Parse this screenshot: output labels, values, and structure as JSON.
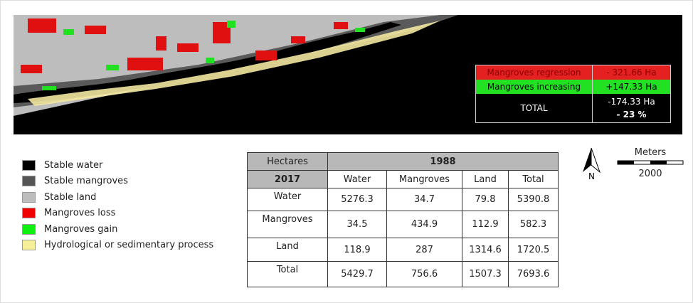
{
  "map": {
    "inset": {
      "rows": [
        {
          "label": "Mangroves regression",
          "value": "- 321.66 Ha"
        },
        {
          "label": "Mangroves increasing",
          "value": "+147.33 Ha"
        },
        {
          "label": "TOTAL",
          "value": "-174.33 Ha",
          "percent": "- 23 %"
        }
      ]
    }
  },
  "legend": [
    "Stable water",
    "Stable mangroves",
    "Stable land",
    "Mangroves loss",
    "Mangroves gain",
    "Hydrological or sedimentary process"
  ],
  "table": {
    "corner": "Hectares",
    "year_top": "1988",
    "year_left": "2017",
    "columns": [
      "Water",
      "Mangroves",
      "Land",
      "Total"
    ],
    "rows": [
      [
        "Water",
        "5276.3",
        "34.7",
        "79.8",
        "5390.8"
      ],
      [
        "Mangroves",
        "34.5",
        "434.9",
        "112.9",
        "582.3"
      ],
      [
        "Land",
        "118.9",
        "287",
        "1314.6",
        "1720.5"
      ],
      [
        "Total",
        "5429.7",
        "756.6",
        "1507.3",
        "7693.6"
      ]
    ]
  },
  "scale": {
    "unit": "Meters",
    "distance": "2000"
  },
  "north": "N"
}
